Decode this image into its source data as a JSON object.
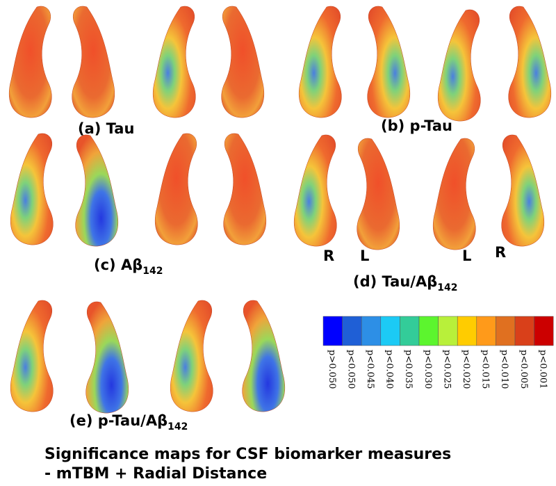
{
  "panels": [
    {
      "label": "(a) Tau"
    },
    {
      "label": "(b) p-Tau"
    },
    {
      "label": "(c) Aβ",
      "sub": "142"
    },
    {
      "label": "(d) Tau/Aβ",
      "sub": "142",
      "sides": [
        "R",
        "L",
        "L",
        "R"
      ]
    },
    {
      "label": "(e) p-Tau/Aβ",
      "sub": "142"
    }
  ],
  "colorbar": [
    {
      "label": "p>0.050",
      "color": "#0000ff"
    },
    {
      "label": "p<0.050",
      "color": "#1f5fd6"
    },
    {
      "label": "p<0.045",
      "color": "#2d8fe6"
    },
    {
      "label": "p<0.040",
      "color": "#1ccaf5"
    },
    {
      "label": "p<0.035",
      "color": "#33cc99"
    },
    {
      "label": "p<0.030",
      "color": "#5cf52e"
    },
    {
      "label": "p<0.025",
      "color": "#b8f03a"
    },
    {
      "label": "p<0.020",
      "color": "#ffcc00"
    },
    {
      "label": "p<0.015",
      "color": "#ff9a1a"
    },
    {
      "label": "p<0.010",
      "color": "#e07020"
    },
    {
      "label": "p<0.005",
      "color": "#d9401a"
    },
    {
      "label": "p<0.001",
      "color": "#cc0000"
    }
  ],
  "title": [
    "Significance maps for CSF biomarker measures",
    "- mTBM  + Radial Distance"
  ]
}
